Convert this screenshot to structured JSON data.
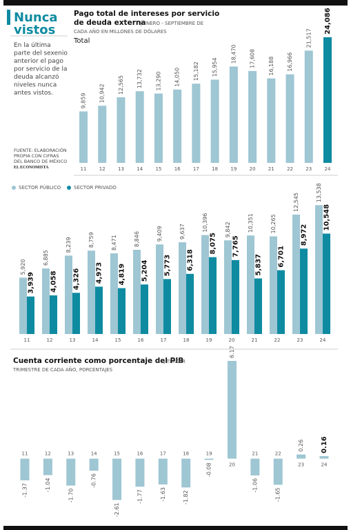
{
  "sidebar": {
    "title": [
      "Nunca",
      "vistos"
    ],
    "text": [
      "En la última",
      "parte del sexenio",
      "anterior el pago",
      "por servicio de la",
      "deuda alcanzó",
      "niveles nunca",
      "antes vistos."
    ],
    "source": [
      "FUENTE: ELABORACIÓN",
      "PROPIA CON CIFRAS",
      "DEL BANCO DE MÉXICO"
    ],
    "brand": "EL ECONOMISTA"
  },
  "chart_data": [
    {
      "type": "bar",
      "title": [
        "Pago total de intereses por servicio",
        "de deuda externa"
      ],
      "subtitle": [
        "| ENERO - SEPTIEMBRE DE",
        "CADA AÑO EN MILLONES DE DÓLARES"
      ],
      "series_label": "Total",
      "categories": [
        "11",
        "12",
        "13",
        "14",
        "15",
        "16",
        "17",
        "18",
        "19",
        "20",
        "21",
        "22",
        "23",
        "24"
      ],
      "values": [
        9859,
        10942,
        12565,
        13732,
        13290,
        14050,
        15182,
        15954,
        18470,
        17608,
        16188,
        16966,
        21517,
        24086
      ],
      "value_labels": [
        "9,859",
        "10,942",
        "12,565",
        "13,732",
        "13,290",
        "14,050",
        "15,182",
        "15,954",
        "18,470",
        "17,608",
        "16,188",
        "16,966",
        "21,517",
        "24,086"
      ],
      "colors": [
        "#9ec6d3",
        "#9ec6d3",
        "#9ec6d3",
        "#9ec6d3",
        "#9ec6d3",
        "#9ec6d3",
        "#9ec6d3",
        "#9ec6d3",
        "#9ec6d3",
        "#9ec6d3",
        "#9ec6d3",
        "#9ec6d3",
        "#9ec6d3",
        "#0e8ba1"
      ],
      "ylim": [
        0,
        25000
      ]
    },
    {
      "type": "grouped-bar",
      "categories": [
        "11",
        "12",
        "13",
        "14",
        "15",
        "16",
        "17",
        "18",
        "19",
        "20",
        "21",
        "22",
        "23",
        "24"
      ],
      "series": [
        {
          "name": "SECTOR PÚBLICO",
          "color": "#9ec6d3",
          "values": [
            5920,
            6885,
            8239,
            8759,
            8471,
            8846,
            9409,
            9637,
            10396,
            9842,
            10351,
            10265,
            12545,
            13538
          ],
          "value_labels": [
            "5,920",
            "6,885",
            "8,239",
            "8,759",
            "8,471",
            "8,846",
            "9,409",
            "9,637",
            "10,396",
            "9,842",
            "10,351",
            "10,265",
            "12,545",
            "13,538"
          ]
        },
        {
          "name": "SECTOR PRIVADO",
          "color": "#0e8ba1",
          "values": [
            3939,
            4058,
            4326,
            4973,
            4819,
            5204,
            5773,
            6318,
            8075,
            7765,
            5837,
            6701,
            8972,
            10548
          ],
          "value_labels": [
            "3,939",
            "4,058",
            "4,326",
            "4,973",
            "4,819",
            "5,204",
            "5,773",
            "6,318",
            "8,075",
            "7,765",
            "5,837",
            "6,701",
            "8,972",
            "10,548"
          ]
        }
      ],
      "ylim": [
        0,
        14500
      ]
    },
    {
      "type": "bar",
      "title": "Cuenta corriente como porcentaje del PIB",
      "subtitle": [
        "| TERCER",
        "TRIMESTRE DE CADA AÑO, PORCENTAJES"
      ],
      "categories": [
        "11",
        "12",
        "13",
        "14",
        "15",
        "16",
        "17",
        "18",
        "19",
        "20",
        "21",
        "22",
        "23",
        "24"
      ],
      "values": [
        -1.37,
        -1.04,
        -1.7,
        -0.76,
        -2.61,
        -1.77,
        -1.63,
        -1.82,
        -0.08,
        6.17,
        -1.06,
        -1.65,
        0.26,
        0.16
      ],
      "value_labels": [
        "-1.37",
        "-1.04",
        "-1.70",
        "-0.76",
        "-2.61",
        "-1.77",
        "-1.63",
        "-1.82",
        "-0.08",
        "6.17",
        "-1.06",
        "-1.65",
        "0.26",
        "0.16"
      ],
      "color": "#9ec6d3",
      "ylim": [
        -2.85,
        6.3
      ]
    }
  ]
}
